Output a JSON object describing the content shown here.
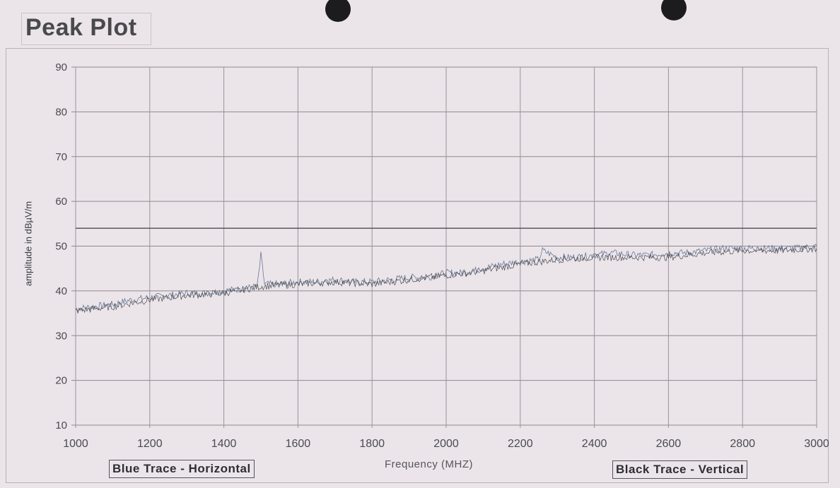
{
  "page": {
    "title": "Peak Plot"
  },
  "legend": {
    "blue_label": "Blue Trace - Horizontal",
    "black_label": "Black Trace - Vertical"
  },
  "chart_data": {
    "type": "line",
    "title": "Peak Plot",
    "xlabel": "Frequency (MHZ)",
    "ylabel": "amplitude in dBµV/m",
    "xlim": [
      1000,
      3000
    ],
    "ylim": [
      10,
      90
    ],
    "x_ticks": [
      1000,
      1200,
      1400,
      1600,
      1800,
      2000,
      2200,
      2400,
      2600,
      2800,
      3000
    ],
    "y_ticks": [
      10,
      20,
      30,
      40,
      50,
      60,
      70,
      80,
      90
    ],
    "grid": true,
    "limit_line": {
      "value": 54,
      "note": "horizontal reference line"
    },
    "series": [
      {
        "name": "Blue Trace - Horizontal",
        "color": "#5a6a8a",
        "x": [
          1000,
          1050,
          1100,
          1150,
          1200,
          1250,
          1300,
          1350,
          1400,
          1450,
          1490,
          1500,
          1510,
          1550,
          1600,
          1650,
          1700,
          1750,
          1800,
          1850,
          1900,
          1950,
          2000,
          2050,
          2100,
          2150,
          2200,
          2250,
          2260,
          2300,
          2350,
          2400,
          2450,
          2500,
          2550,
          2600,
          2650,
          2700,
          2750,
          2800,
          2850,
          2900,
          2950,
          3000
        ],
        "y": [
          36,
          36.5,
          37,
          38,
          38.5,
          39,
          39.5,
          39.5,
          40,
          40.5,
          41,
          48,
          41.5,
          41.5,
          42,
          42,
          42.5,
          42,
          42,
          42.5,
          43,
          43,
          44,
          44,
          45,
          46,
          46.5,
          47,
          49,
          47.5,
          47.5,
          48,
          48.5,
          48,
          48,
          48.5,
          48.5,
          49,
          49.5,
          49.5,
          49.5,
          49.5,
          49.5,
          50
        ]
      },
      {
        "name": "Black Trace - Vertical",
        "color": "#3a3a3e",
        "x": [
          1000,
          1100,
          1200,
          1300,
          1400,
          1500,
          1600,
          1700,
          1800,
          1900,
          2000,
          2100,
          2200,
          2300,
          2400,
          2500,
          2600,
          2700,
          2800,
          2900,
          3000
        ],
        "y": [
          35.5,
          36.5,
          38,
          39,
          39.5,
          41,
          41.5,
          42,
          41.5,
          42.5,
          43.5,
          44.5,
          46,
          47,
          47.5,
          47.5,
          47.5,
          48.5,
          49,
          49,
          49.5
        ]
      }
    ]
  }
}
